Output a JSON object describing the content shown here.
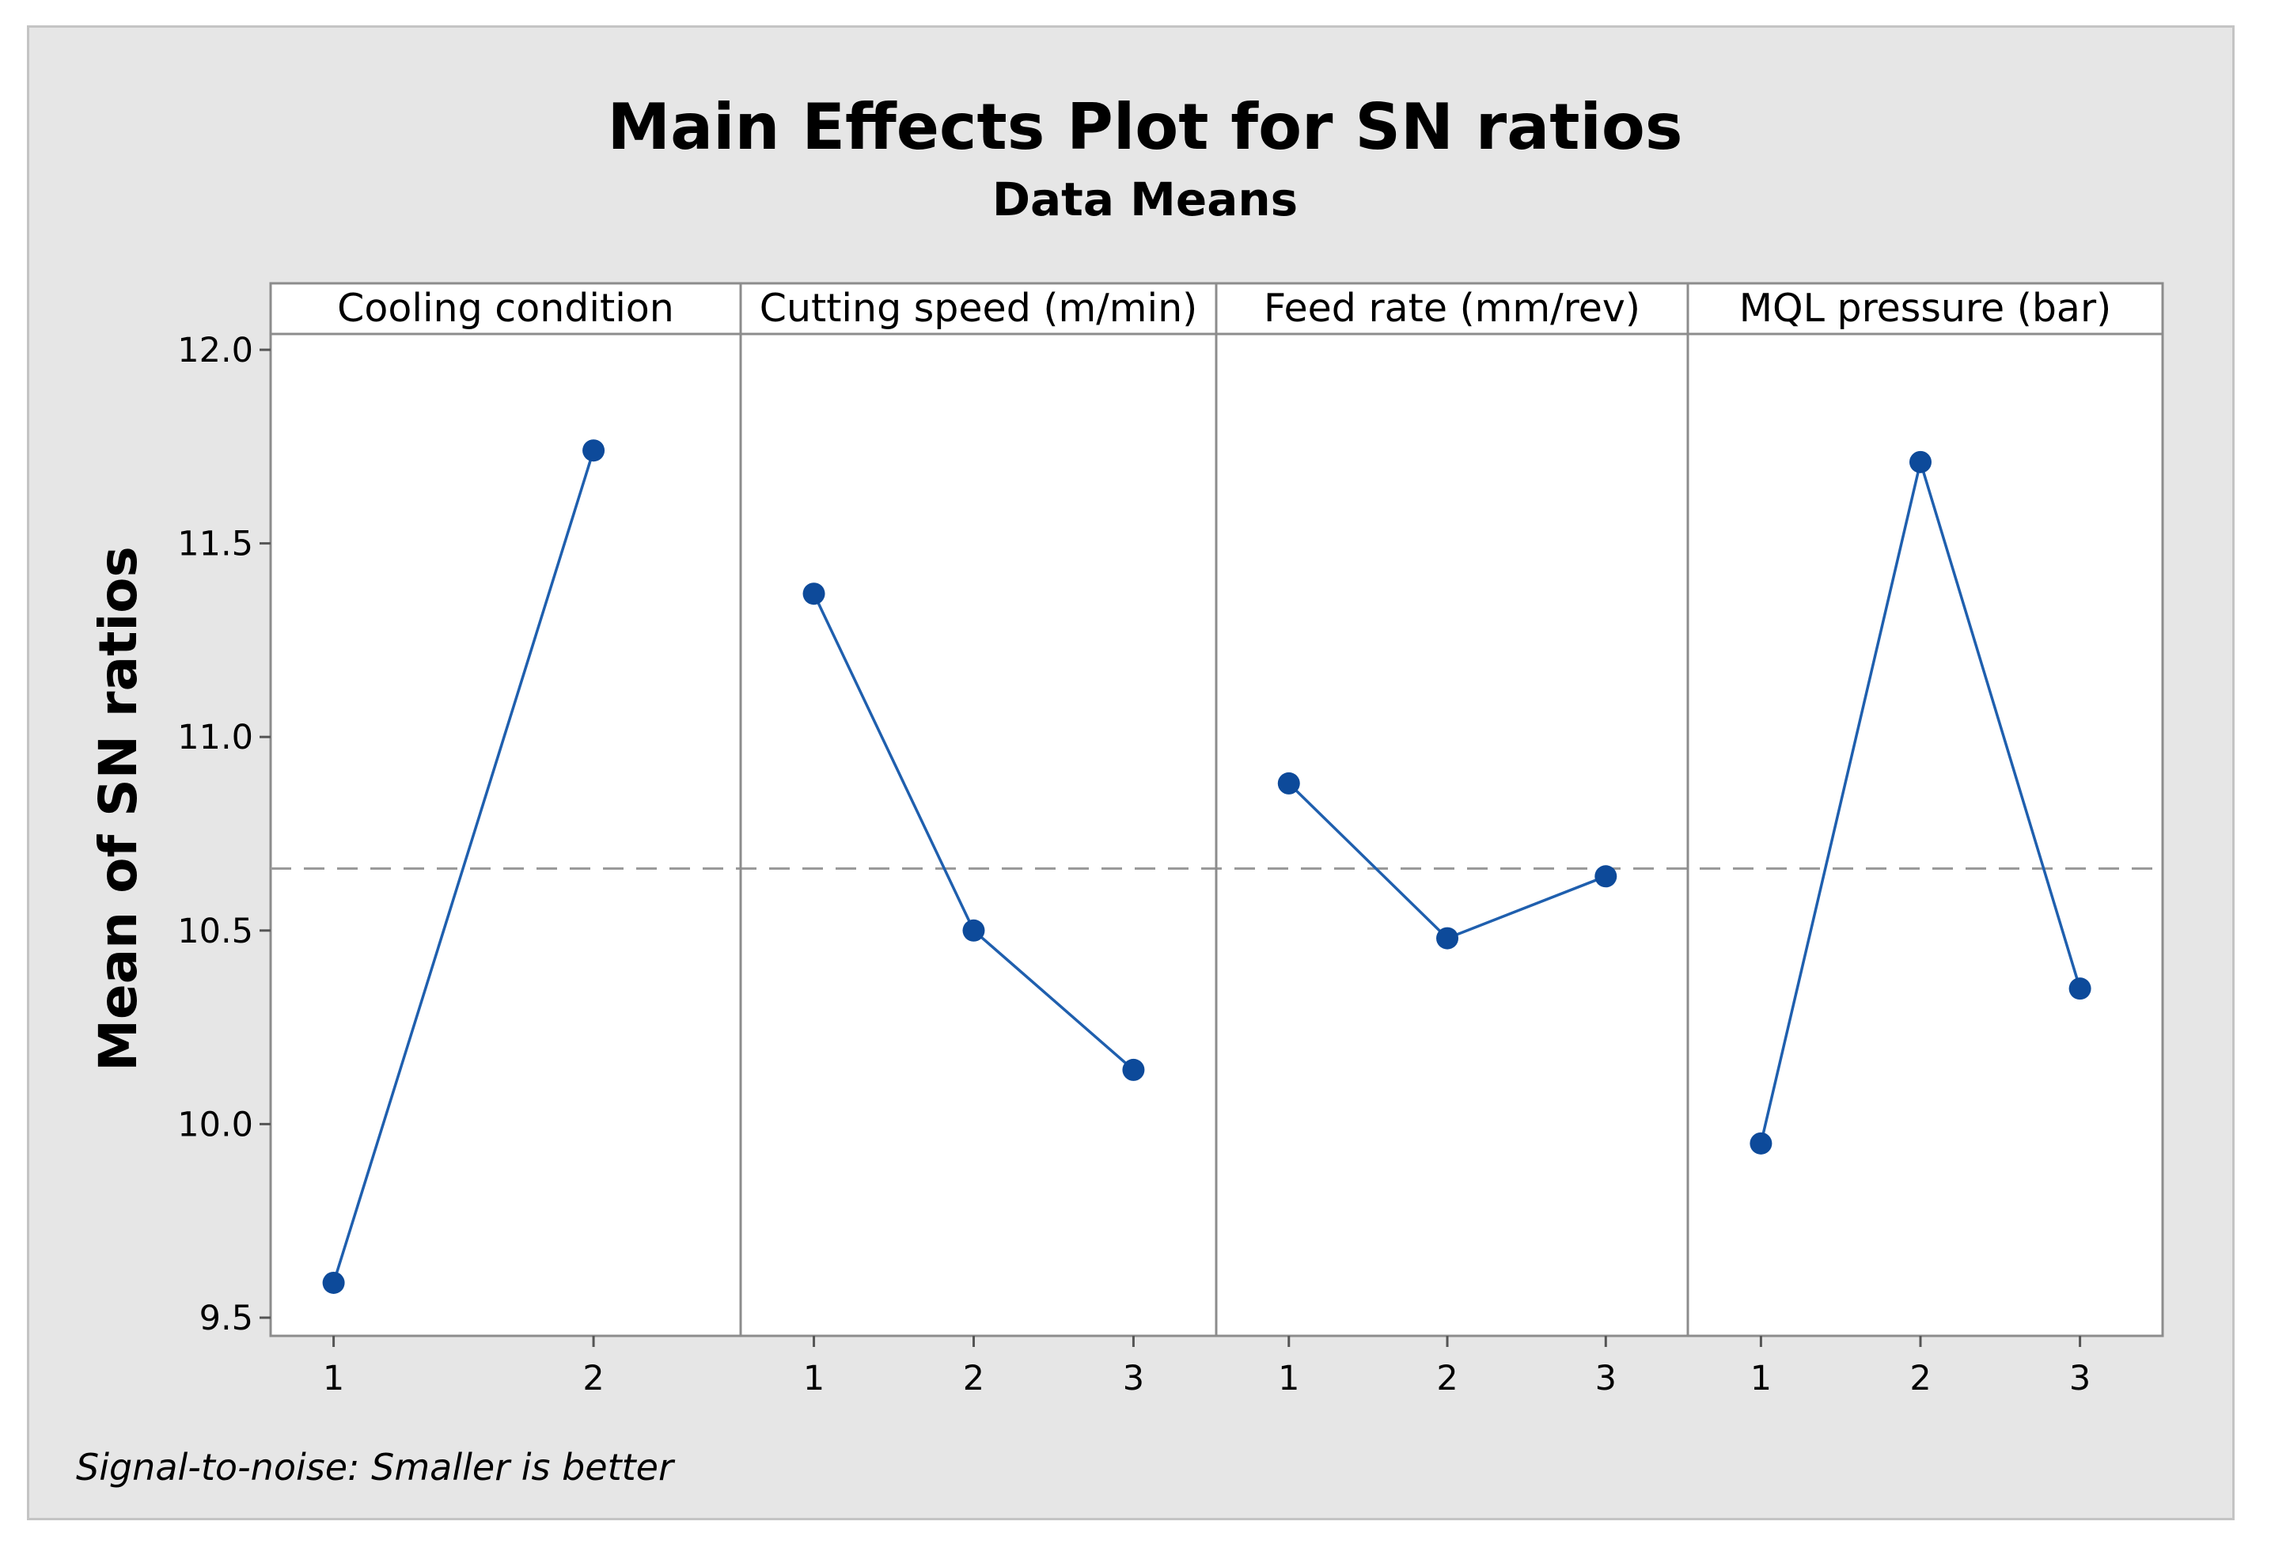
{
  "chart_data": {
    "type": "line",
    "title": "Main Effects Plot for SN ratios",
    "subtitle": "Data Means",
    "ylabel": "Mean of SN ratios",
    "ylim": [
      9.45,
      12.05
    ],
    "yticks": [
      "9.5",
      "10.0",
      "10.5",
      "11.0",
      "11.5",
      "12.0"
    ],
    "yticks_values": [
      9.5,
      10.0,
      10.5,
      11.0,
      11.5,
      12.0
    ],
    "grand_mean": 10.66,
    "panels": [
      {
        "name": "Cooling condition",
        "levels": [
          "1",
          "2"
        ],
        "values": [
          9.59,
          11.74
        ]
      },
      {
        "name": "Cutting speed (m/min)",
        "levels": [
          "1",
          "2",
          "3"
        ],
        "values": [
          11.37,
          10.5,
          10.14
        ]
      },
      {
        "name": "Feed rate (mm/rev)",
        "levels": [
          "1",
          "2",
          "3"
        ],
        "values": [
          10.88,
          10.48,
          10.64
        ]
      },
      {
        "name": "MQL pressure (bar)",
        "levels": [
          "1",
          "2",
          "3"
        ],
        "values": [
          9.95,
          11.71,
          10.35
        ]
      }
    ],
    "footnote": "Signal-to-noise: Smaller is better",
    "colors": {
      "series": "#1f5fae",
      "marker": "#0d4a9a",
      "mean_line": "#9a9a9a",
      "plot_bg": "#ffffff",
      "frame_bg": "#e6e6e6",
      "panel_border": "#8c8c8c"
    }
  }
}
